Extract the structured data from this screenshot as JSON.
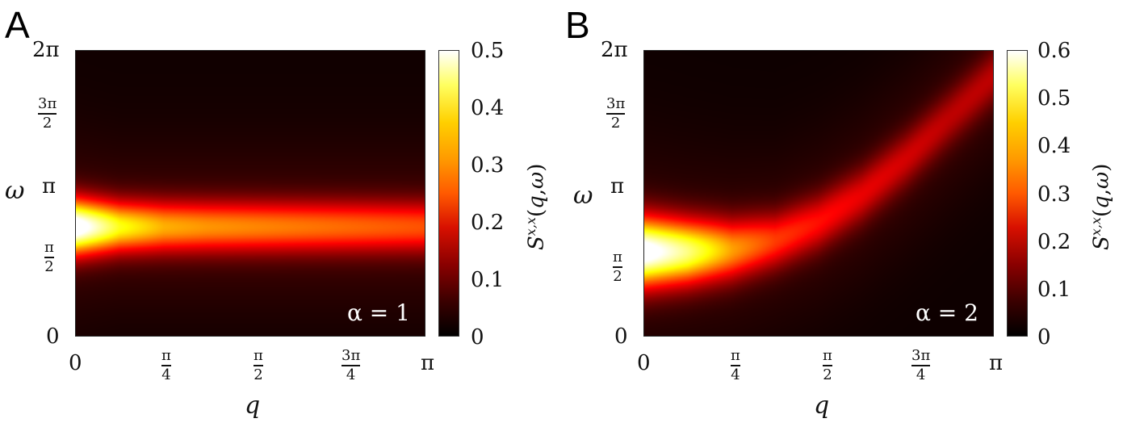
{
  "chart_data": [
    {
      "type": "heatmap",
      "panel": "A",
      "annotation": "α = 1",
      "xlabel": "q",
      "ylabel": "ω",
      "colorbar_label": "S^{x,x}(q,ω)",
      "x_ticks": [
        "0",
        "π/4",
        "π/2",
        "3π/4",
        "π"
      ],
      "y_ticks": [
        "0",
        "π/2",
        "π",
        "3π/2",
        "2π"
      ],
      "colorbar_ticks": [
        "0",
        "0.1",
        "0.2",
        "0.3",
        "0.4",
        "0.5"
      ],
      "xlim": [
        0,
        3.1416
      ],
      "ylim": [
        0,
        6.2832
      ],
      "zlim": [
        0,
        0.5
      ],
      "colormap": "hot",
      "peak_band": {
        "q": [
          0,
          0.39,
          0.79,
          1.18,
          1.57,
          1.96,
          2.36,
          2.75,
          3.14
        ],
        "omega": [
          2.4,
          2.4,
          2.4,
          2.4,
          2.4,
          2.4,
          2.4,
          2.4,
          2.4
        ],
        "intensity": [
          0.5,
          0.34,
          0.27,
          0.25,
          0.24,
          0.23,
          0.22,
          0.21,
          0.2
        ],
        "width_omega": [
          0.6,
          0.55,
          0.55,
          0.55,
          0.55,
          0.55,
          0.55,
          0.55,
          0.55
        ]
      }
    },
    {
      "type": "heatmap",
      "panel": "B",
      "annotation": "α = 2",
      "xlabel": "q",
      "ylabel": "ω",
      "colorbar_label": "S^{x,x}(q,ω)",
      "x_ticks": [
        "0",
        "π/4",
        "π/2",
        "3π/4",
        "π"
      ],
      "y_ticks": [
        "0",
        "π/2",
        "π",
        "3π/2",
        "2π"
      ],
      "colorbar_ticks": [
        "0",
        "0.1",
        "0.2",
        "0.3",
        "0.4",
        "0.5",
        "0.6"
      ],
      "xlim": [
        0,
        3.1416
      ],
      "ylim": [
        0,
        6.2832
      ],
      "zlim": [
        0,
        0.6
      ],
      "colormap": "hot",
      "peak_band": {
        "q": [
          0,
          0.39,
          0.79,
          1.18,
          1.57,
          1.96,
          2.36,
          2.75,
          3.14
        ],
        "omega": [
          1.85,
          1.85,
          1.9,
          2.1,
          2.5,
          3.1,
          3.9,
          4.8,
          5.7
        ],
        "intensity": [
          0.6,
          0.48,
          0.32,
          0.23,
          0.19,
          0.16,
          0.14,
          0.12,
          0.12
        ],
        "width_omega": [
          0.75,
          0.7,
          0.65,
          0.6,
          0.6,
          0.6,
          0.6,
          0.6,
          0.6
        ]
      }
    }
  ]
}
